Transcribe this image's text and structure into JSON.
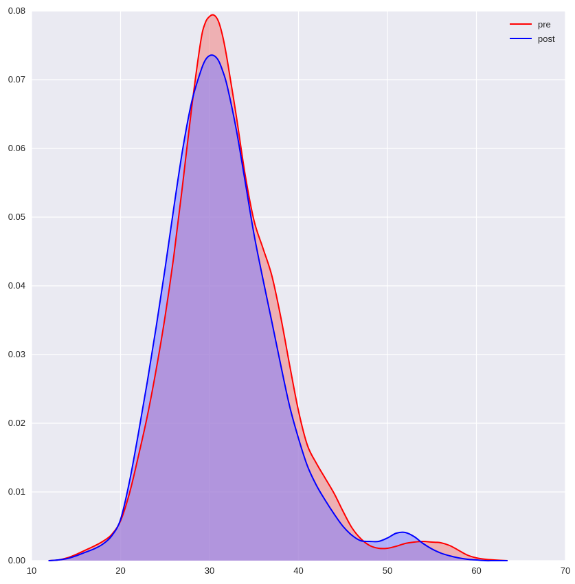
{
  "chart_data": {
    "type": "area",
    "title": "",
    "xlabel": "",
    "ylabel": "",
    "xlim": [
      10,
      70
    ],
    "ylim": [
      0,
      0.08
    ],
    "xticks": [
      "10",
      "20",
      "30",
      "40",
      "50",
      "60",
      "70"
    ],
    "yticks": [
      "0.00",
      "0.01",
      "0.02",
      "0.03",
      "0.04",
      "0.05",
      "0.06",
      "0.07",
      "0.08"
    ],
    "grid": true,
    "legend_position": "top-right",
    "series": [
      {
        "name": "pre",
        "color": "#ff0000",
        "fill": "rgba(240,128,128,0.55)",
        "x": [
          11.9,
          13,
          14,
          15,
          16,
          17,
          18,
          19,
          20,
          21,
          22,
          23,
          24,
          25,
          26,
          27,
          28,
          29,
          29.5,
          30,
          30.5,
          31,
          31.5,
          32,
          33,
          34,
          35,
          36,
          37,
          38,
          39,
          40,
          41,
          42,
          43,
          44,
          45,
          46,
          47,
          48,
          49,
          50,
          51,
          52,
          53,
          54,
          55,
          56,
          57,
          58,
          59,
          60,
          61,
          62,
          63.5
        ],
        "y": [
          0.0,
          0.0001,
          0.0004,
          0.0009,
          0.0015,
          0.0021,
          0.0028,
          0.0038,
          0.0058,
          0.0098,
          0.0152,
          0.021,
          0.0278,
          0.0355,
          0.0445,
          0.055,
          0.066,
          0.0755,
          0.0782,
          0.0792,
          0.0794,
          0.0785,
          0.0762,
          0.0728,
          0.0648,
          0.0562,
          0.0495,
          0.0455,
          0.0415,
          0.0355,
          0.0285,
          0.0218,
          0.0168,
          0.0142,
          0.012,
          0.0098,
          0.0072,
          0.0048,
          0.0032,
          0.0022,
          0.0018,
          0.0018,
          0.0021,
          0.0025,
          0.0027,
          0.0028,
          0.0027,
          0.0026,
          0.0022,
          0.0015,
          0.0008,
          0.0004,
          0.0002,
          0.0001,
          0.0
        ]
      },
      {
        "name": "post",
        "color": "#0000ff",
        "fill": "rgba(128,128,255,0.55)",
        "x": [
          11.9,
          13,
          14,
          15,
          16,
          17,
          18,
          19,
          20,
          21,
          22,
          23,
          24,
          25,
          26,
          27,
          28,
          29,
          29.5,
          30,
          30.5,
          31,
          31.5,
          32,
          33,
          34,
          35,
          36,
          37,
          38,
          39,
          40,
          41,
          42,
          43,
          44,
          45,
          46,
          47,
          48,
          49,
          50,
          51,
          52,
          53,
          54,
          55,
          56,
          57,
          58,
          59,
          60,
          61,
          62,
          63.5
        ],
        "y": [
          0.0,
          0.0001,
          0.0003,
          0.0007,
          0.0012,
          0.0017,
          0.0024,
          0.0036,
          0.006,
          0.0115,
          0.0185,
          0.026,
          0.034,
          0.0425,
          0.0515,
          0.06,
          0.0668,
          0.0712,
          0.0728,
          0.0735,
          0.0735,
          0.0728,
          0.0712,
          0.069,
          0.0628,
          0.0552,
          0.0475,
          0.041,
          0.0348,
          0.0285,
          0.0225,
          0.0178,
          0.0138,
          0.011,
          0.0088,
          0.0068,
          0.005,
          0.0037,
          0.0029,
          0.0028,
          0.0028,
          0.0033,
          0.004,
          0.0041,
          0.0035,
          0.0025,
          0.0017,
          0.0011,
          0.0007,
          0.0004,
          0.0002,
          0.0001,
          0.0,
          0.0,
          0.0
        ]
      }
    ]
  }
}
